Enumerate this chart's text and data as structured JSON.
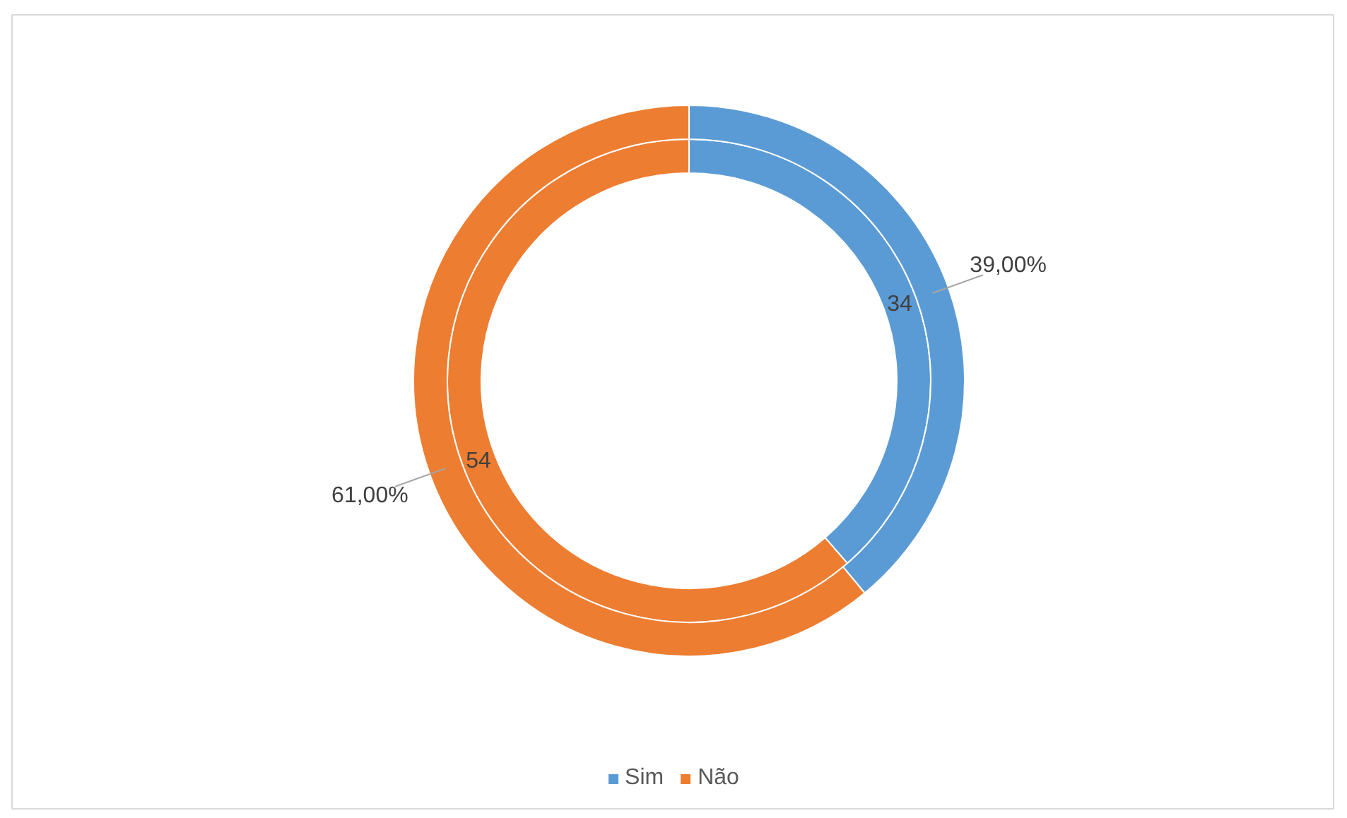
{
  "chart_data": {
    "type": "donut",
    "categories": [
      "Sim",
      "Não"
    ],
    "colors": [
      "#5b9bd5",
      "#ed7d31"
    ],
    "series": [
      {
        "values": [
          34,
          54
        ],
        "value_labels": [
          "34",
          "54"
        ]
      },
      {
        "values": [
          39,
          61
        ],
        "value_labels": [
          "39,00%",
          "61,00%"
        ]
      }
    ],
    "legend": "bottom"
  }
}
